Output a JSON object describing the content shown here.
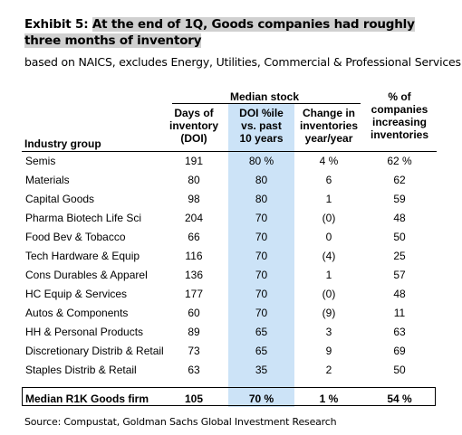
{
  "title": {
    "label": "Exhibit 5:",
    "text": "At the end of 1Q, Goods companies had roughly three months of inventory"
  },
  "subtitle": "based on NAICS, excludes Energy, Utilities, Commercial & Professional Services",
  "headers": {
    "median_stock": "Median stock",
    "days": [
      "Days of",
      "inventory",
      "(DOI)"
    ],
    "doi_pctile": [
      "DOI %ile",
      "vs. past",
      "10 years"
    ],
    "change": [
      "Change in",
      "inventories",
      "year/year"
    ],
    "pct_increasing": [
      "% of",
      "companies",
      "increasing",
      "inventories"
    ],
    "group": "Industry group"
  },
  "rows": [
    {
      "name": "Semis",
      "days": "191",
      "doi": "80 %",
      "change": "4 %",
      "pct": "62 %"
    },
    {
      "name": "Materials",
      "days": "80",
      "doi": "80",
      "change": "6",
      "pct": "62"
    },
    {
      "name": "Capital Goods",
      "days": "98",
      "doi": "80",
      "change": "1",
      "pct": "59"
    },
    {
      "name": "Pharma Biotech Life Sci",
      "days": "204",
      "doi": "70",
      "change": "(0)",
      "pct": "48"
    },
    {
      "name": "Food Bev & Tobacco",
      "days": "66",
      "doi": "70",
      "change": "0",
      "pct": "50"
    },
    {
      "name": "Tech Hardware & Equip",
      "days": "116",
      "doi": "70",
      "change": "(4)",
      "pct": "25"
    },
    {
      "name": "Cons Durables & Apparel",
      "days": "136",
      "doi": "70",
      "change": "1",
      "pct": "57"
    },
    {
      "name": "HC Equip & Services",
      "days": "177",
      "doi": "70",
      "change": "(0)",
      "pct": "48"
    },
    {
      "name": "Autos & Components",
      "days": "60",
      "doi": "70",
      "change": "(9)",
      "pct": "11"
    },
    {
      "name": "HH & Personal Products",
      "days": "89",
      "doi": "65",
      "change": "3",
      "pct": "63"
    },
    {
      "name": "Discretionary Distrib & Retail",
      "days": "73",
      "doi": "65",
      "change": "9",
      "pct": "69"
    },
    {
      "name": "Staples Distrib & Retail",
      "days": "63",
      "doi": "35",
      "change": "2",
      "pct": "50"
    }
  ],
  "total": {
    "name": "Median R1K Goods firm",
    "days": "105",
    "doi": "70 %",
    "change": "1 %",
    "pct": "54 %"
  },
  "source": "Source: Compustat, Goldman Sachs Global Investment Research",
  "colors": {
    "highlight_column": "#cce3f7",
    "title_highlight": "#d0d0d0"
  }
}
